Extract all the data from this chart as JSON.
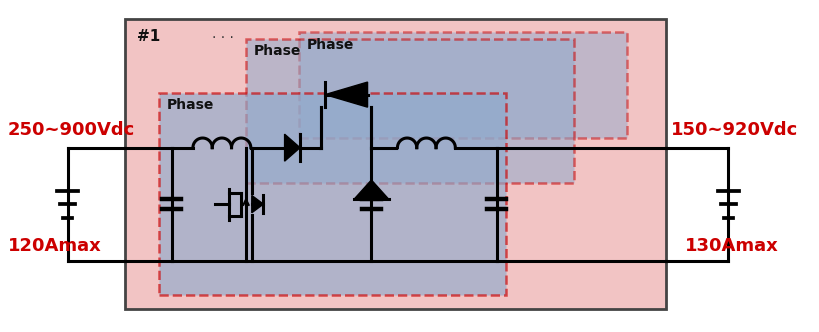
{
  "fig_width": 8.2,
  "fig_height": 3.32,
  "dpi": 100,
  "label1_voltage": "250~900Vdc",
  "label1_current": "120Amax",
  "label2_voltage": "150~920Vdc",
  "label2_current": "130Amax",
  "label_color": "#cc0000",
  "number_label": "#1",
  "outer_facecolor": "#f2c4c4",
  "phase_facecolor": "#8faacc",
  "wire_color": "#000000",
  "box_edge_color": "#444444",
  "dashed_color": "#cc0000"
}
